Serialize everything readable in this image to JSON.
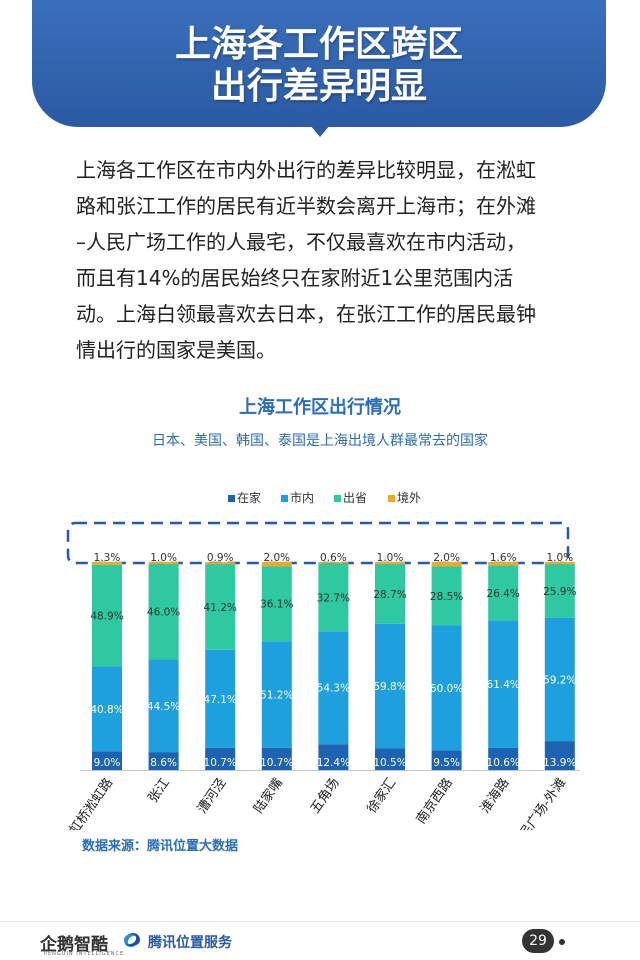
{
  "header": {
    "title_line1": "上海各工作区跨区",
    "title_line2": "出行差异明显"
  },
  "intro_lines": [
    "上海各工作区在市内外出行的差异比较明显，在淞虹",
    "路和张江工作的居民有近半数会离开上海市；在外滩",
    "–人民广场工作的人最宅，不仅最喜欢在市内活动，",
    "而且有14%的居民始终只在家附近1公里范围内活",
    "动。上海白领最喜欢去日本，在张江工作的居民最钟",
    "情出行的国家是美国。"
  ],
  "chart_data": {
    "type": "bar",
    "stacked": true,
    "title": "上海工作区出行情况",
    "subtitle": "日本、美国、韩国、泰国是上海出境人群最常去的国家",
    "legend_position": "top",
    "categories": [
      "虹桥淞虹路",
      "张江",
      "漕河泾",
      "陆家嘴",
      "五角场",
      "徐家汇",
      "南京西路",
      "淮海路",
      "人民广场-外滩"
    ],
    "series": [
      {
        "name": "在家",
        "color": "#1c63b3",
        "values": [
          9.0,
          8.6,
          10.7,
          10.7,
          12.4,
          10.5,
          9.5,
          10.6,
          13.9
        ],
        "labels": [
          "9.0%",
          "8.6%",
          "10.7%",
          "10.7%",
          "12.4%",
          "10.5%",
          "9.5%",
          "10.6%",
          "13.9%"
        ]
      },
      {
        "name": "市内",
        "color": "#1ea0de",
        "values": [
          40.8,
          44.5,
          47.1,
          51.2,
          54.3,
          59.8,
          60.0,
          61.4,
          59.2
        ],
        "labels": [
          "40.8%",
          "44.5%",
          "47.1%",
          "51.2%",
          "54.3%",
          "59.8%",
          "60.0%",
          "61.4%",
          "59.2%"
        ]
      },
      {
        "name": "出省",
        "color": "#2ec9a0",
        "values": [
          48.9,
          46.0,
          41.2,
          36.1,
          32.7,
          28.7,
          28.5,
          26.4,
          25.9
        ],
        "labels": [
          "48.9%",
          "46.0%",
          "41.2%",
          "36.1%",
          "32.7%",
          "28.7%",
          "28.5%",
          "26.4%",
          "25.9%"
        ]
      },
      {
        "name": "境外",
        "color": "#f5a623",
        "values": [
          1.3,
          1.0,
          0.9,
          2.0,
          0.6,
          1.0,
          2.0,
          1.6,
          1.0
        ],
        "labels": [
          "1.3%",
          "1.0%",
          "0.9%",
          "2.0%",
          "0.6%",
          "1.0%",
          "2.0%",
          "1.6%",
          "1.0%"
        ]
      }
    ],
    "ylim": [
      0,
      100
    ]
  },
  "source": "数据来源：腾讯位置大数据",
  "footer": {
    "logo1": "企鹅智酷",
    "logo1_sub": "PENGUIN INTELLIGENCE",
    "logo2": "腾讯位置服务",
    "page": "29"
  }
}
